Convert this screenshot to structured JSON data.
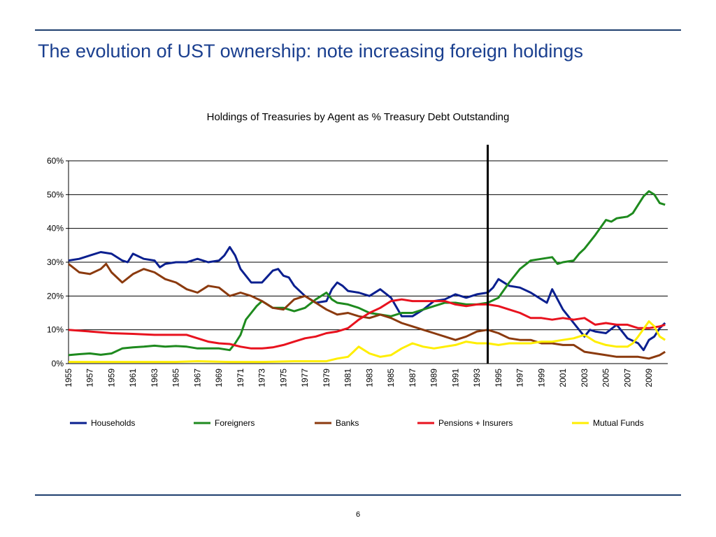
{
  "slide": {
    "title": "The evolution of UST ownership: note increasing foreign holdings",
    "page_number": "6"
  },
  "colors": {
    "rule": "#1f3f6e",
    "title": "#1a3f8f"
  },
  "chart_data": {
    "type": "line",
    "title": "Holdings of Treasuries by Agent as % Treasury Debt Outstanding",
    "xlabel": "",
    "ylabel": "",
    "xlim": [
      1955,
      2010.75
    ],
    "ylim": [
      0,
      60
    ],
    "y_ticks": [
      "0%",
      "10%",
      "20%",
      "30%",
      "40%",
      "50%",
      "60%"
    ],
    "y_tick_values": [
      0,
      10,
      20,
      30,
      40,
      50,
      60
    ],
    "x_ticks": [
      "1955",
      "1957",
      "1959",
      "1961",
      "1963",
      "1965",
      "1967",
      "1969",
      "1971",
      "1973",
      "1975",
      "1977",
      "1979",
      "1981",
      "1983",
      "1985",
      "1987",
      "1989",
      "1991",
      "1993",
      "1995",
      "1997",
      "1999",
      "2001",
      "2003",
      "2005",
      "2007",
      "2009"
    ],
    "x_tick_values": [
      1955,
      1957,
      1959,
      1961,
      1963,
      1965,
      1967,
      1969,
      1971,
      1973,
      1975,
      1977,
      1979,
      1981,
      1983,
      1985,
      1987,
      1989,
      1991,
      1993,
      1995,
      1997,
      1999,
      2001,
      2003,
      2005,
      2007,
      2009
    ],
    "grid": true,
    "legend_position": "bottom",
    "vertical_marker_x": 1994.0,
    "series": [
      {
        "name": "Households",
        "color": "#0a1f8f",
        "points": [
          [
            1955,
            30.5
          ],
          [
            1956,
            31
          ],
          [
            1957,
            32
          ],
          [
            1958,
            33
          ],
          [
            1959,
            32.5
          ],
          [
            1960,
            30.5
          ],
          [
            1960.5,
            30
          ],
          [
            1961,
            32.5
          ],
          [
            1962,
            31
          ],
          [
            1963,
            30.5
          ],
          [
            1963.5,
            28.5
          ],
          [
            1964,
            29.5
          ],
          [
            1965,
            30
          ],
          [
            1966,
            30
          ],
          [
            1967,
            31
          ],
          [
            1968,
            30
          ],
          [
            1969,
            30.5
          ],
          [
            1969.5,
            32
          ],
          [
            1970,
            34.5
          ],
          [
            1970.5,
            32
          ],
          [
            1971,
            28
          ],
          [
            1971.5,
            26
          ],
          [
            1972,
            24
          ],
          [
            1973,
            24
          ],
          [
            1974,
            27.5
          ],
          [
            1974.5,
            28
          ],
          [
            1975,
            26
          ],
          [
            1975.5,
            25.5
          ],
          [
            1976,
            23
          ],
          [
            1977,
            20
          ],
          [
            1978,
            18
          ],
          [
            1979,
            18.5
          ],
          [
            1979.5,
            22
          ],
          [
            1980,
            24
          ],
          [
            1980.5,
            23
          ],
          [
            1981,
            21.5
          ],
          [
            1982,
            21
          ],
          [
            1983,
            20
          ],
          [
            1984,
            22
          ],
          [
            1985,
            19.5
          ],
          [
            1986,
            14
          ],
          [
            1987,
            14
          ],
          [
            1988,
            16
          ],
          [
            1989,
            18.5
          ],
          [
            1990,
            19
          ],
          [
            1991,
            20.5
          ],
          [
            1992,
            19.5
          ],
          [
            1993,
            20.5
          ],
          [
            1994,
            21
          ],
          [
            1994.5,
            22.5
          ],
          [
            1995,
            25
          ],
          [
            1996,
            23
          ],
          [
            1997,
            22.5
          ],
          [
            1998,
            21
          ],
          [
            1999,
            19
          ],
          [
            1999.5,
            18
          ],
          [
            2000,
            22
          ],
          [
            2001,
            16
          ],
          [
            2001.5,
            14
          ],
          [
            2002,
            12
          ],
          [
            2002.5,
            10
          ],
          [
            2003,
            8
          ],
          [
            2003.5,
            10
          ],
          [
            2004,
            9.5
          ],
          [
            2005,
            9
          ],
          [
            2006,
            11.5
          ],
          [
            2007,
            7.5
          ],
          [
            2008,
            6
          ],
          [
            2008.5,
            4
          ],
          [
            2009,
            7
          ],
          [
            2009.5,
            8
          ],
          [
            2010,
            10.5
          ],
          [
            2010.5,
            12
          ]
        ]
      },
      {
        "name": "Foreigners",
        "color": "#1e8a1e",
        "points": [
          [
            1955,
            2.5
          ],
          [
            1956,
            2.8
          ],
          [
            1957,
            3
          ],
          [
            1958,
            2.6
          ],
          [
            1959,
            3
          ],
          [
            1960,
            4.5
          ],
          [
            1961,
            4.8
          ],
          [
            1962,
            5
          ],
          [
            1963,
            5.3
          ],
          [
            1964,
            5
          ],
          [
            1965,
            5.2
          ],
          [
            1966,
            5
          ],
          [
            1967,
            4.5
          ],
          [
            1968,
            4.5
          ],
          [
            1969,
            4.5
          ],
          [
            1970,
            4
          ],
          [
            1970.5,
            6
          ],
          [
            1971,
            8.5
          ],
          [
            1971.5,
            13
          ],
          [
            1972,
            15
          ],
          [
            1972.5,
            17
          ],
          [
            1973,
            18.5
          ],
          [
            1974,
            16.5
          ],
          [
            1975,
            16.5
          ],
          [
            1976,
            15.5
          ],
          [
            1977,
            16.5
          ],
          [
            1978,
            19
          ],
          [
            1979,
            21
          ],
          [
            1979.5,
            19
          ],
          [
            1980,
            18
          ],
          [
            1981,
            17.5
          ],
          [
            1982,
            16.5
          ],
          [
            1983,
            15
          ],
          [
            1984,
            14.5
          ],
          [
            1985,
            14
          ],
          [
            1986,
            15
          ],
          [
            1987,
            15
          ],
          [
            1988,
            16
          ],
          [
            1989,
            17
          ],
          [
            1990,
            18
          ],
          [
            1991,
            18
          ],
          [
            1992,
            17.5
          ],
          [
            1993,
            17.5
          ],
          [
            1994,
            18
          ],
          [
            1995,
            19.5
          ],
          [
            1996,
            24
          ],
          [
            1997,
            28
          ],
          [
            1998,
            30.5
          ],
          [
            1999,
            31
          ],
          [
            2000,
            31.5
          ],
          [
            2000.5,
            29.5
          ],
          [
            2001,
            30
          ],
          [
            2002,
            30.5
          ],
          [
            2002.5,
            32.5
          ],
          [
            2003,
            34
          ],
          [
            2004,
            38
          ],
          [
            2005,
            42.5
          ],
          [
            2005.5,
            42
          ],
          [
            2006,
            43
          ],
          [
            2007,
            43.5
          ],
          [
            2007.5,
            44.5
          ],
          [
            2008,
            47
          ],
          [
            2008.5,
            49.5
          ],
          [
            2009,
            51
          ],
          [
            2009.5,
            50
          ],
          [
            2010,
            47.5
          ],
          [
            2010.5,
            47
          ]
        ]
      },
      {
        "name": "Banks",
        "color": "#8b3a0e",
        "points": [
          [
            1955,
            29.5
          ],
          [
            1956,
            27
          ],
          [
            1957,
            26.5
          ],
          [
            1958,
            28
          ],
          [
            1958.5,
            29.5
          ],
          [
            1959,
            27
          ],
          [
            1960,
            24
          ],
          [
            1961,
            26.5
          ],
          [
            1962,
            28
          ],
          [
            1963,
            27
          ],
          [
            1964,
            25
          ],
          [
            1965,
            24
          ],
          [
            1966,
            22
          ],
          [
            1967,
            21
          ],
          [
            1968,
            23
          ],
          [
            1969,
            22.5
          ],
          [
            1970,
            20
          ],
          [
            1971,
            21
          ],
          [
            1972,
            20
          ],
          [
            1973,
            18.5
          ],
          [
            1974,
            16.5
          ],
          [
            1975,
            16
          ],
          [
            1976,
            19
          ],
          [
            1977,
            20
          ],
          [
            1978,
            18
          ],
          [
            1979,
            16
          ],
          [
            1980,
            14.5
          ],
          [
            1981,
            15
          ],
          [
            1982,
            14
          ],
          [
            1983,
            13.5
          ],
          [
            1984,
            14.5
          ],
          [
            1985,
            13.5
          ],
          [
            1986,
            12
          ],
          [
            1987,
            11
          ],
          [
            1988,
            10
          ],
          [
            1989,
            9
          ],
          [
            1990,
            8
          ],
          [
            1991,
            7
          ],
          [
            1992,
            8
          ],
          [
            1993,
            9.5
          ],
          [
            1994,
            10
          ],
          [
            1995,
            9
          ],
          [
            1996,
            7.5
          ],
          [
            1997,
            7
          ],
          [
            1998,
            7
          ],
          [
            1999,
            6
          ],
          [
            2000,
            6
          ],
          [
            2001,
            5.5
          ],
          [
            2002,
            5.5
          ],
          [
            2003,
            3.5
          ],
          [
            2004,
            3
          ],
          [
            2005,
            2.5
          ],
          [
            2006,
            2
          ],
          [
            2007,
            2
          ],
          [
            2008,
            2
          ],
          [
            2009,
            1.5
          ],
          [
            2010,
            2.5
          ],
          [
            2010.5,
            3.5
          ]
        ]
      },
      {
        "name": "Pensions + Insurers",
        "color": "#e8121e",
        "points": [
          [
            1955,
            10
          ],
          [
            1957,
            9.5
          ],
          [
            1959,
            9
          ],
          [
            1961,
            8.8
          ],
          [
            1963,
            8.5
          ],
          [
            1965,
            8.5
          ],
          [
            1966,
            8.5
          ],
          [
            1967,
            7.5
          ],
          [
            1968,
            6.5
          ],
          [
            1969,
            6
          ],
          [
            1970,
            5.8
          ],
          [
            1971,
            5
          ],
          [
            1972,
            4.5
          ],
          [
            1973,
            4.5
          ],
          [
            1974,
            4.8
          ],
          [
            1975,
            5.5
          ],
          [
            1976,
            6.5
          ],
          [
            1977,
            7.5
          ],
          [
            1978,
            8
          ],
          [
            1979,
            9
          ],
          [
            1980,
            9.5
          ],
          [
            1981,
            10.5
          ],
          [
            1982,
            13
          ],
          [
            1983,
            15
          ],
          [
            1984,
            16.5
          ],
          [
            1985,
            18.5
          ],
          [
            1986,
            19
          ],
          [
            1987,
            18.5
          ],
          [
            1988,
            18.5
          ],
          [
            1989,
            18.5
          ],
          [
            1990,
            18.5
          ],
          [
            1991,
            17.5
          ],
          [
            1992,
            17
          ],
          [
            1993,
            17.5
          ],
          [
            1994,
            17.5
          ],
          [
            1995,
            17
          ],
          [
            1996,
            16
          ],
          [
            1997,
            15
          ],
          [
            1998,
            13.5
          ],
          [
            1999,
            13.5
          ],
          [
            2000,
            13
          ],
          [
            2001,
            13.5
          ],
          [
            2002,
            13
          ],
          [
            2003,
            13.5
          ],
          [
            2004,
            11.5
          ],
          [
            2005,
            12
          ],
          [
            2006,
            11.5
          ],
          [
            2007,
            11.5
          ],
          [
            2008,
            10.5
          ],
          [
            2009,
            10.5
          ],
          [
            2010,
            11
          ],
          [
            2010.5,
            11.5
          ]
        ]
      },
      {
        "name": "Mutual Funds",
        "color": "#ffee00",
        "points": [
          [
            1955,
            0.5
          ],
          [
            1960,
            0.5
          ],
          [
            1965,
            0.5
          ],
          [
            1967,
            0.7
          ],
          [
            1970,
            0.5
          ],
          [
            1973,
            0.5
          ],
          [
            1976,
            0.7
          ],
          [
            1979,
            0.7
          ],
          [
            1980,
            1.5
          ],
          [
            1981,
            2
          ],
          [
            1981.5,
            3.5
          ],
          [
            1982,
            5
          ],
          [
            1983,
            3
          ],
          [
            1984,
            2
          ],
          [
            1985,
            2.5
          ],
          [
            1986,
            4.5
          ],
          [
            1987,
            6
          ],
          [
            1988,
            5
          ],
          [
            1989,
            4.5
          ],
          [
            1990,
            5
          ],
          [
            1991,
            5.5
          ],
          [
            1992,
            6.5
          ],
          [
            1993,
            6
          ],
          [
            1994,
            6
          ],
          [
            1995,
            5.5
          ],
          [
            1996,
            6
          ],
          [
            1997,
            6
          ],
          [
            1998,
            6
          ],
          [
            1999,
            6.5
          ],
          [
            2000,
            6.5
          ],
          [
            2001,
            7
          ],
          [
            2002,
            7.5
          ],
          [
            2003,
            8.5
          ],
          [
            2004,
            6.5
          ],
          [
            2005,
            5.5
          ],
          [
            2006,
            5
          ],
          [
            2007,
            5
          ],
          [
            2007.5,
            6
          ],
          [
            2008,
            8
          ],
          [
            2009,
            12.5
          ],
          [
            2009.5,
            11
          ],
          [
            2010,
            8
          ],
          [
            2010.5,
            7
          ]
        ]
      }
    ]
  }
}
